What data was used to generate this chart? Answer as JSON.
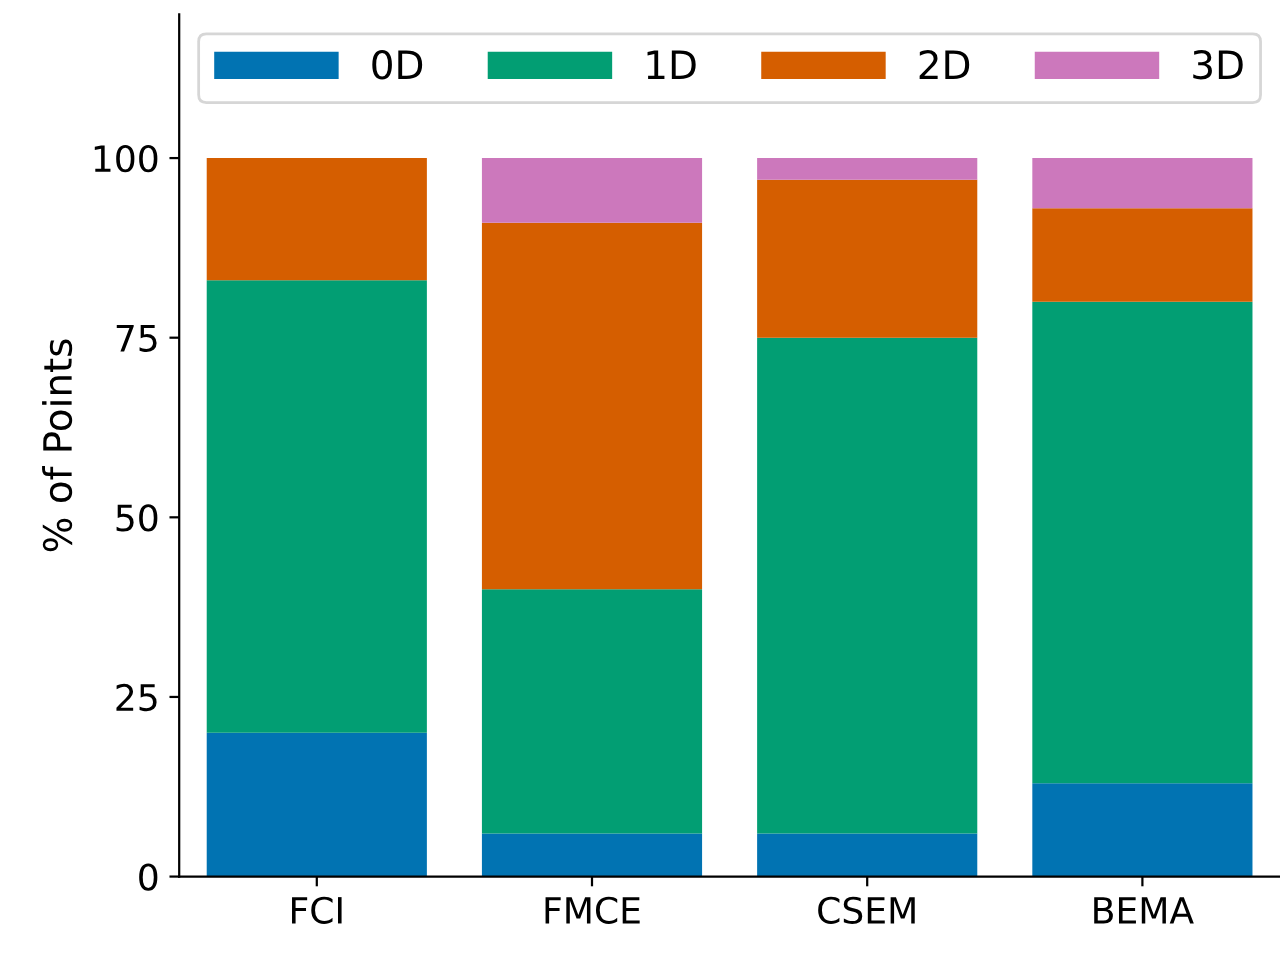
{
  "chart_data": {
    "type": "bar",
    "stacked": true,
    "ylabel": "% of Points",
    "categories": [
      "FCI",
      "FMCE",
      "CSEM",
      "BEMA"
    ],
    "series": [
      {
        "name": "0D",
        "color": "#0173b2",
        "values": [
          20,
          6,
          6,
          13
        ]
      },
      {
        "name": "1D",
        "color": "#029e73",
        "values": [
          63,
          34,
          69,
          67
        ]
      },
      {
        "name": "2D",
        "color": "#d55e00",
        "values": [
          17,
          51,
          22,
          13
        ]
      },
      {
        "name": "3D",
        "color": "#cc78bc",
        "values": [
          0,
          9,
          3,
          7
        ]
      }
    ],
    "ylim": [
      0,
      120
    ],
    "yticks": [
      0,
      25,
      50,
      75,
      100
    ],
    "grid": false,
    "legend": "top"
  }
}
